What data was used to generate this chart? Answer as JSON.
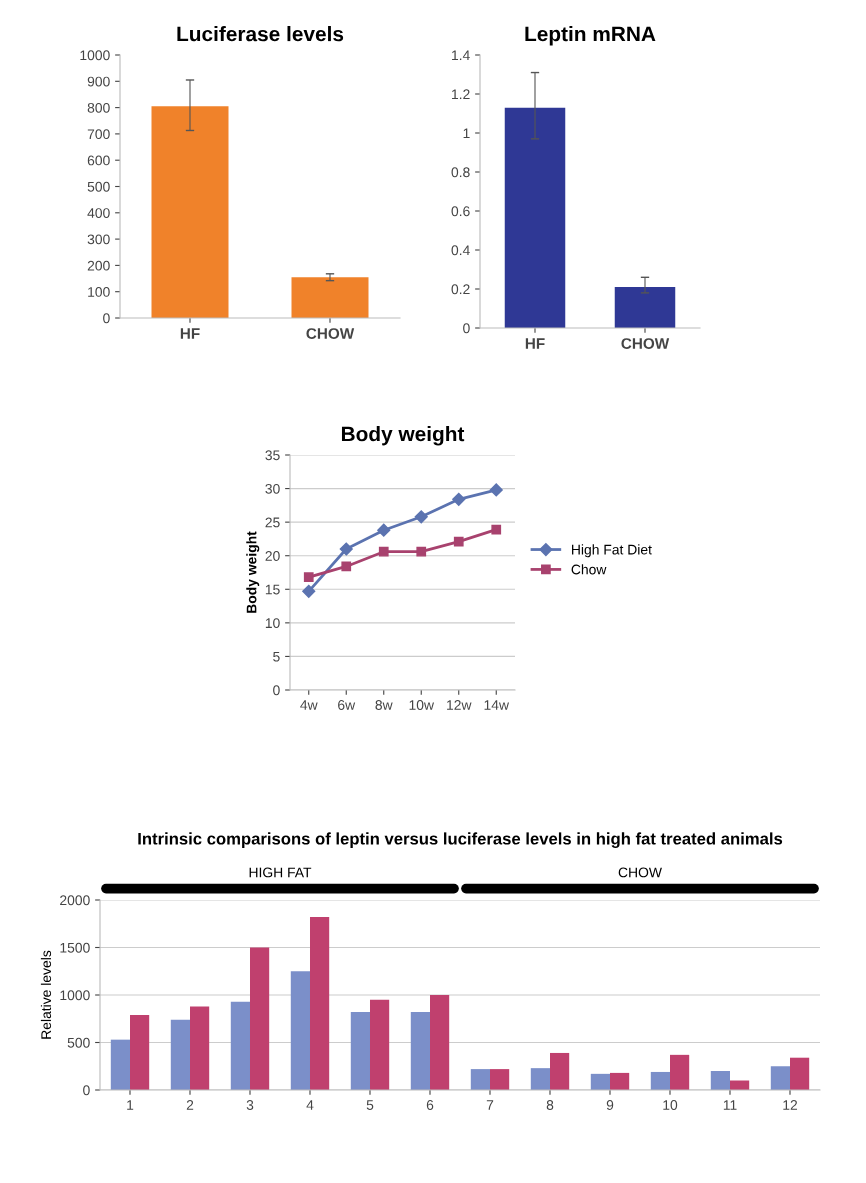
{
  "chart_data": [
    {
      "type": "bar",
      "title": "Luciferase levels",
      "categories": [
        "HF",
        "CHOW"
      ],
      "values": [
        805,
        155
      ],
      "errors": [
        [
          713,
          905
        ],
        [
          142,
          168
        ]
      ],
      "color": "#f0822a",
      "ylim": [
        0,
        1000
      ],
      "yticks": [
        0,
        100,
        200,
        300,
        400,
        500,
        600,
        700,
        800,
        900,
        1000
      ],
      "grid": false
    },
    {
      "type": "bar",
      "title": "Leptin mRNA",
      "categories": [
        "HF",
        "CHOW"
      ],
      "values": [
        1.13,
        0.21
      ],
      "errors": [
        [
          0.97,
          1.31
        ],
        [
          0.18,
          0.26
        ]
      ],
      "color": "#2f3895",
      "ylim": [
        0,
        1.4
      ],
      "yticks": [
        0,
        0.2,
        0.4,
        0.6,
        0.8,
        1,
        1.2,
        1.4
      ],
      "grid": false
    },
    {
      "type": "line",
      "title": "Body weight",
      "ylabel": "Body weight",
      "categories": [
        "4w",
        "6w",
        "8w",
        "10w",
        "12w",
        "14w"
      ],
      "series": [
        {
          "name": "High Fat Diet",
          "color": "#5b73b0",
          "marker": "diamond",
          "values": [
            14.7,
            21,
            23.8,
            25.8,
            28.4,
            29.8
          ]
        },
        {
          "name": "Chow",
          "color": "#a8426e",
          "marker": "square",
          "values": [
            16.8,
            18.4,
            20.6,
            20.6,
            22.1,
            23.9
          ]
        }
      ],
      "ylim": [
        0,
        35
      ],
      "yticks": [
        0,
        5,
        10,
        15,
        20,
        25,
        30,
        35
      ],
      "grid": "y",
      "legend": "right"
    },
    {
      "type": "bar",
      "title": "Intrinsic comparisons of leptin versus luciferase levels in high fat treated animals",
      "ylabel": "Relative levels",
      "categories": [
        "1",
        "2",
        "3",
        "4",
        "5",
        "6",
        "7",
        "8",
        "9",
        "10",
        "11",
        "12"
      ],
      "series": [
        {
          "color": "#7b8fc9",
          "values": [
            530,
            740,
            930,
            1250,
            820,
            820,
            220,
            230,
            170,
            190,
            200,
            250
          ]
        },
        {
          "color": "#c0406e",
          "values": [
            790,
            880,
            1500,
            1820,
            950,
            1000,
            220,
            390,
            180,
            370,
            100,
            340
          ]
        }
      ],
      "annotations": [
        "HIGH FAT",
        "CHOW"
      ],
      "ylim": [
        0,
        2000
      ],
      "yticks": [
        0,
        500,
        1000,
        1500,
        2000
      ],
      "grid": "y"
    }
  ]
}
